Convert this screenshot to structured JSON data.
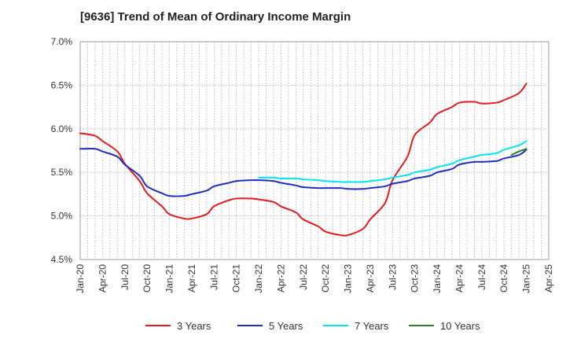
{
  "chart_data": {
    "type": "line",
    "title": "[9636]  Trend of Mean of Ordinary Income Margin",
    "xlabel": "",
    "ylabel": "",
    "x_ticks": [
      "Jan-20",
      "Apr-20",
      "Jul-20",
      "Oct-20",
      "Jan-21",
      "Apr-21",
      "Jul-21",
      "Oct-21",
      "Jan-22",
      "Apr-22",
      "Jul-22",
      "Oct-22",
      "Jan-23",
      "Apr-23",
      "Jul-23",
      "Oct-23",
      "Jan-24",
      "Apr-24",
      "Jul-24",
      "Oct-24",
      "Jan-25",
      "Apr-25"
    ],
    "y_ticks": [
      "4.5%",
      "5.0%",
      "5.5%",
      "6.0%",
      "6.5%",
      "7.0%"
    ],
    "ylim": [
      4.5,
      7.0
    ],
    "y_unit": "%",
    "grid": "vertical dotted at each month, horizontal dotted at each tick",
    "legend_position": "bottom",
    "series": [
      {
        "name": "3 Years",
        "color": "#e31a1c",
        "x": [
          "Jan-20",
          "Mar-20",
          "Apr-20",
          "Jun-20",
          "Jul-20",
          "Sep-20",
          "Oct-20",
          "Dec-20",
          "Jan-21",
          "Mar-21",
          "Apr-21",
          "Jun-21",
          "Jul-21",
          "Sep-21",
          "Oct-21",
          "Dec-21",
          "Jan-22",
          "Mar-22",
          "Apr-22",
          "Jun-22",
          "Jul-22",
          "Sep-22",
          "Oct-22",
          "Dec-22",
          "Jan-23",
          "Mar-23",
          "Apr-23",
          "Jun-23",
          "Jul-23",
          "Sep-23",
          "Oct-23",
          "Dec-23",
          "Jan-24",
          "Mar-24",
          "Apr-24",
          "Jun-24",
          "Jul-24",
          "Sep-24",
          "Oct-24",
          "Dec-24",
          "Jan-25"
        ],
        "values": [
          5.95,
          5.92,
          5.86,
          5.74,
          5.6,
          5.4,
          5.26,
          5.11,
          5.02,
          4.97,
          4.97,
          5.02,
          5.11,
          5.18,
          5.2,
          5.2,
          5.19,
          5.16,
          5.11,
          5.04,
          4.96,
          4.88,
          4.82,
          4.78,
          4.78,
          4.85,
          4.96,
          5.15,
          5.41,
          5.68,
          5.93,
          6.07,
          6.17,
          6.25,
          6.3,
          6.31,
          6.29,
          6.3,
          6.33,
          6.41,
          6.52
        ]
      },
      {
        "name": "5 Years",
        "color": "#1f2fbf",
        "x": [
          "Jan-20",
          "Mar-20",
          "Apr-20",
          "Jun-20",
          "Jul-20",
          "Sep-20",
          "Oct-20",
          "Dec-20",
          "Jan-21",
          "Mar-21",
          "Apr-21",
          "Jun-21",
          "Jul-21",
          "Sep-21",
          "Oct-21",
          "Dec-21",
          "Jan-22",
          "Mar-22",
          "Apr-22",
          "Jun-22",
          "Jul-22",
          "Sep-22",
          "Oct-22",
          "Dec-22",
          "Jan-23",
          "Mar-23",
          "Apr-23",
          "Jun-23",
          "Jul-23",
          "Sep-23",
          "Oct-23",
          "Dec-23",
          "Jan-24",
          "Mar-24",
          "Apr-24",
          "Jun-24",
          "Jul-24",
          "Sep-24",
          "Oct-24",
          "Dec-24",
          "Jan-25"
        ],
        "values": [
          5.77,
          5.77,
          5.74,
          5.68,
          5.59,
          5.46,
          5.34,
          5.26,
          5.23,
          5.23,
          5.25,
          5.29,
          5.34,
          5.38,
          5.4,
          5.41,
          5.41,
          5.4,
          5.38,
          5.35,
          5.33,
          5.32,
          5.32,
          5.32,
          5.31,
          5.31,
          5.32,
          5.34,
          5.37,
          5.4,
          5.43,
          5.46,
          5.5,
          5.54,
          5.59,
          5.62,
          5.62,
          5.63,
          5.66,
          5.7,
          5.76
        ]
      },
      {
        "name": "7 Years",
        "color": "#00e5f0",
        "x": [
          "Jan-22",
          "Mar-22",
          "Apr-22",
          "Jun-22",
          "Jul-22",
          "Sep-22",
          "Oct-22",
          "Dec-22",
          "Jan-23",
          "Mar-23",
          "Apr-23",
          "Jun-23",
          "Jul-23",
          "Sep-23",
          "Oct-23",
          "Dec-23",
          "Jan-24",
          "Mar-24",
          "Apr-24",
          "Jun-24",
          "Jul-24",
          "Sep-24",
          "Oct-24",
          "Dec-24",
          "Jan-25"
        ],
        "values": [
          5.44,
          5.44,
          5.43,
          5.43,
          5.42,
          5.41,
          5.4,
          5.39,
          5.39,
          5.39,
          5.4,
          5.42,
          5.44,
          5.47,
          5.5,
          5.53,
          5.56,
          5.6,
          5.64,
          5.68,
          5.7,
          5.72,
          5.76,
          5.81,
          5.86
        ]
      },
      {
        "name": "10 Years",
        "color": "#2e7d32",
        "x": [
          "Nov-24",
          "Dec-24",
          "Jan-25"
        ],
        "values": [
          5.7,
          5.74,
          5.77
        ]
      }
    ]
  }
}
